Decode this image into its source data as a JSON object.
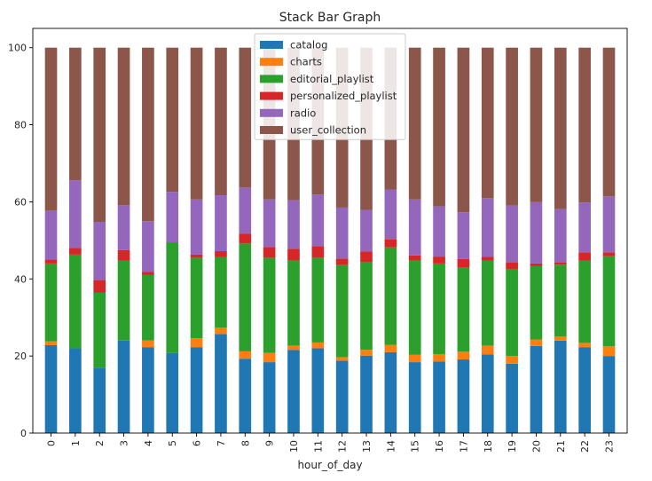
{
  "chart_data": {
    "type": "bar",
    "stacked": true,
    "title": "Stack Bar Graph",
    "xlabel": "hour_of_day",
    "ylabel": "",
    "ylim": [
      0,
      105
    ],
    "yticks": [
      0,
      20,
      40,
      60,
      80,
      100
    ],
    "grid": false,
    "legend_position": "top-center",
    "categories": [
      "0",
      "1",
      "2",
      "3",
      "4",
      "5",
      "6",
      "7",
      "8",
      "9",
      "10",
      "11",
      "12",
      "13",
      "14",
      "15",
      "16",
      "17",
      "18",
      "19",
      "20",
      "21",
      "22",
      "23"
    ],
    "series": [
      {
        "name": "catalog",
        "color": "#1f77b4",
        "values": [
          22.8,
          22.0,
          17.0,
          24.0,
          22.3,
          20.8,
          22.3,
          25.7,
          19.3,
          18.4,
          21.6,
          22.0,
          18.8,
          20.1,
          21.0,
          18.4,
          18.6,
          19.1,
          20.4,
          18.0,
          22.6,
          24.0,
          22.3,
          20.0
        ]
      },
      {
        "name": "charts",
        "color": "#ff7f0e",
        "values": [
          1.0,
          0.0,
          0.0,
          0.0,
          1.7,
          0.0,
          2.3,
          1.7,
          1.9,
          2.4,
          1.1,
          1.5,
          0.9,
          1.5,
          1.9,
          1.9,
          1.9,
          2.0,
          2.3,
          2.0,
          1.7,
          1.1,
          1.1,
          2.5
        ]
      },
      {
        "name": "editorial_playlist",
        "color": "#2ca02c",
        "values": [
          20.2,
          24.3,
          19.4,
          20.7,
          17.0,
          28.7,
          20.9,
          18.3,
          28.0,
          24.7,
          22.1,
          22.0,
          23.9,
          22.7,
          25.3,
          24.5,
          23.5,
          21.8,
          22.0,
          22.5,
          19.0,
          18.6,
          21.3,
          23.4
        ]
      },
      {
        "name": "personalized_playlist",
        "color": "#d62728",
        "values": [
          1.0,
          1.7,
          3.3,
          2.8,
          0.8,
          0.0,
          0.8,
          1.5,
          2.5,
          2.8,
          3.0,
          3.0,
          1.7,
          2.8,
          2.0,
          1.3,
          1.8,
          2.3,
          1.0,
          1.8,
          0.7,
          0.6,
          2.2,
          1.0
        ]
      },
      {
        "name": "radio",
        "color": "#9467bd",
        "values": [
          12.8,
          17.6,
          15.1,
          11.6,
          13.2,
          13.1,
          14.3,
          14.5,
          12.0,
          12.3,
          12.6,
          13.4,
          13.2,
          10.8,
          13.0,
          14.5,
          13.0,
          12.1,
          15.3,
          14.7,
          15.9,
          13.8,
          12.9,
          14.5
        ]
      },
      {
        "name": "user_collection",
        "color": "#8c564b",
        "values": [
          42.2,
          34.4,
          45.2,
          40.9,
          45.0,
          37.4,
          39.4,
          38.3,
          36.3,
          39.4,
          39.6,
          38.1,
          41.5,
          42.1,
          36.8,
          39.4,
          41.2,
          42.7,
          39.0,
          41.0,
          40.1,
          41.9,
          40.2,
          38.6
        ]
      }
    ]
  }
}
